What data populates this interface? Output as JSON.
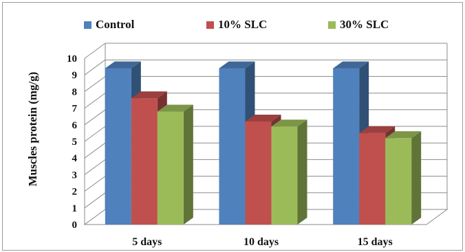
{
  "chart_data": {
    "type": "bar",
    "categories": [
      "5 days",
      "10 days",
      "15 days"
    ],
    "series": [
      {
        "name": "Control",
        "values": [
          9.4,
          9.4,
          9.4
        ],
        "color": "#4f81bd"
      },
      {
        "name": "10% SLC",
        "values": [
          7.6,
          6.2,
          5.5
        ],
        "color": "#c0504d"
      },
      {
        "name": "30% SLC",
        "values": [
          6.8,
          5.9,
          5.2
        ],
        "color": "#9bbb59"
      }
    ],
    "ylabel": "Muscles protein (mg/g)",
    "ylim": [
      0,
      10
    ],
    "yticks": [
      0,
      1,
      2,
      3,
      4,
      5,
      6,
      7,
      8,
      9,
      10
    ],
    "grid": true,
    "legend_position": "top",
    "style": "3d-clustered-column"
  }
}
